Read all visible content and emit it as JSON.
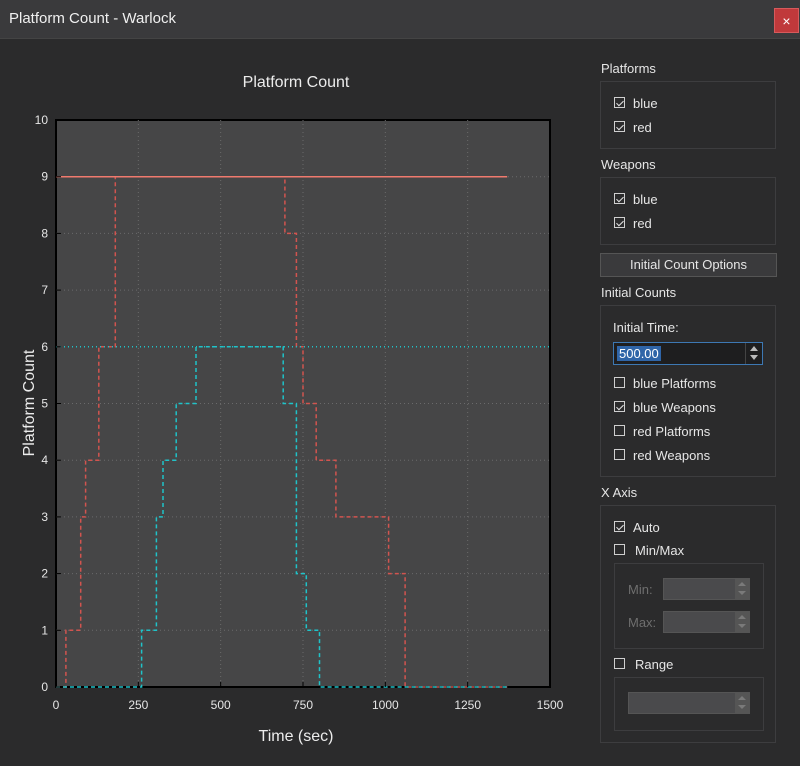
{
  "window": {
    "title": "Platform Count - Warlock",
    "close_label": "×"
  },
  "chart_data": {
    "type": "line",
    "title": "Platform Count",
    "xlabel": "Time (sec)",
    "ylabel": "Platform Count",
    "xlim": [
      0,
      1500
    ],
    "ylim": [
      0,
      10
    ],
    "xticks": [
      0,
      250,
      500,
      750,
      1000,
      1250,
      1500
    ],
    "yticks": [
      0,
      1,
      2,
      3,
      4,
      5,
      6,
      7,
      8,
      9,
      10
    ],
    "grid": true,
    "series": [
      {
        "color": "#d2544f",
        "style": "dashed",
        "step": true,
        "x": [
          0,
          30,
          30,
          75,
          75,
          90,
          90,
          130,
          130,
          180,
          180,
          695,
          695,
          730,
          730,
          750,
          750,
          790,
          790,
          850,
          850,
          1010,
          1010,
          1060,
          1060,
          1370
        ],
        "y": [
          0,
          0,
          1,
          1,
          3,
          3,
          4,
          4,
          6,
          6,
          9,
          9,
          8,
          8,
          6,
          6,
          5,
          5,
          4,
          4,
          3,
          3,
          2,
          2,
          0,
          0
        ]
      },
      {
        "color": "#1fc3c9",
        "style": "dashed",
        "step": true,
        "x": [
          0,
          260,
          260,
          305,
          305,
          325,
          325,
          365,
          365,
          425,
          425,
          690,
          690,
          730,
          730,
          760,
          760,
          800,
          800,
          855,
          855,
          1370
        ],
        "y": [
          0,
          0,
          1,
          1,
          3,
          3,
          4,
          4,
          5,
          5,
          6,
          6,
          5,
          5,
          2,
          2,
          1,
          1,
          0,
          0,
          0,
          0
        ]
      },
      {
        "color": "#f07a6e",
        "style": "solid",
        "step": false,
        "x": [
          0,
          1370
        ],
        "y": [
          9,
          9
        ]
      },
      {
        "color": "#1fc3c9",
        "style": "dotted",
        "step": false,
        "x": [
          0,
          1500
        ],
        "y": [
          6,
          6
        ]
      }
    ]
  },
  "panel": {
    "platforms": {
      "title": "Platforms",
      "items": [
        {
          "label": "blue",
          "checked": true
        },
        {
          "label": "red",
          "checked": true
        }
      ]
    },
    "weapons": {
      "title": "Weapons",
      "items": [
        {
          "label": "blue",
          "checked": true
        },
        {
          "label": "red",
          "checked": true
        }
      ]
    },
    "initial_count_options_label": "Initial Count Options",
    "initial_counts": {
      "title": "Initial Counts",
      "time_label": "Initial Time:",
      "time_value": "500.00",
      "items": [
        {
          "label": "blue Platforms",
          "checked": false
        },
        {
          "label": "blue Weapons",
          "checked": true
        },
        {
          "label": "red Platforms",
          "checked": false
        },
        {
          "label": "red Weapons",
          "checked": false
        }
      ]
    },
    "x_axis": {
      "title": "X Axis",
      "auto": {
        "label": "Auto",
        "checked": true
      },
      "minmax": {
        "label": "Min/Max",
        "checked": false
      },
      "min_label": "Min:",
      "max_label": "Max:",
      "range": {
        "label": "Range",
        "checked": false
      }
    }
  }
}
